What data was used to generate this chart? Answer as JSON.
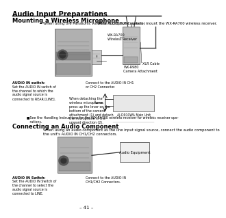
{
  "bg_color": "#ffffff",
  "title": "Audio Input Preparations",
  "section1": "Mounting a Wireless Microphone",
  "section1_text": "When using the Panasonic wireless microphone system, mount the WX-RA700 wireless receiver.",
  "top_label": "To the AUDIO OUT Connector",
  "label_wx_ra700": "WX-RA700\nWireless Receiver",
  "label_wx_r980": "WX-R980\nCamera Attachment",
  "label_xlr": "XLR Cable",
  "label_audio_in_switch": "AUDIO IN switch:",
  "label_audio_in_switch_body": "Set the AUDIO IN switch of\nthe channel to which the\naudio signal source is\nconnected to REAR [LINE].",
  "label_connect": "Connect to the AUDIO IN CH1\nor CH2 Connector.",
  "section1_note": "■See the Handling Instructions for the WX-RA700 wireless receiver for wireless receiver ope-\n   rations.",
  "label_detach": "When detaching the\nwireless microphone,\npress up the lever on the\nbottom of the camera\nattachment (1) and detach\nthe microphone in the\nupward direction (2).",
  "label_lever": "Lever",
  "label_main_unit": "AJ-D910WA Main Unit",
  "section2": "Connecting an Audio Component",
  "section2_text": "When using an audio component as the line input signal source, connect the audio component to\nthe unit's AUDIO IN CH1/CH2 connectors.",
  "label_audio_equip": "Audio Equipment",
  "label_audio_in_switch2": "AUDIO IN Switch:",
  "label_audio_in_switch2_body": "Set the AUDIO IN Switch of\nthe channel to select the\naudio signal source is\nconnected to LINE.",
  "label_connect2": "Connect to the AUDIO IN\nCH1/CH2 Connectors.",
  "page_number": "– 41 –"
}
